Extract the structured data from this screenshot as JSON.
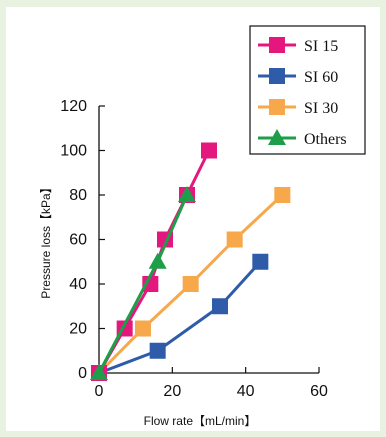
{
  "chart_data": {
    "type": "line",
    "title": "",
    "xlabel": "Flow rate【mL/min】",
    "ylabel": "Pressure loss【kPa】",
    "xlim": [
      0,
      60
    ],
    "ylim": [
      0,
      120
    ],
    "xticks": [
      "0",
      "20",
      "40",
      "60"
    ],
    "yticks": [
      "0",
      "20",
      "40",
      "60",
      "80",
      "100",
      "120"
    ],
    "grid": false,
    "legend_position": "top-right",
    "series": [
      {
        "name": "SI 15",
        "color": "#e4177e",
        "marker": "square",
        "points": [
          [
            0,
            0
          ],
          [
            7,
            20
          ],
          [
            14,
            40
          ],
          [
            18,
            60
          ],
          [
            24,
            80
          ],
          [
            30,
            100
          ]
        ]
      },
      {
        "name": "SI 60",
        "color": "#2f5ca8",
        "marker": "square",
        "points": [
          [
            0,
            0
          ],
          [
            16,
            10
          ],
          [
            33,
            30
          ],
          [
            44,
            50
          ]
        ]
      },
      {
        "name": "SI 30",
        "color": "#f6a84a",
        "marker": "square",
        "points": [
          [
            0,
            0
          ],
          [
            12,
            20
          ],
          [
            25,
            40
          ],
          [
            37,
            60
          ],
          [
            50,
            80
          ]
        ]
      },
      {
        "name": "Others",
        "color": "#1e9e48",
        "marker": "triangle",
        "points": [
          [
            0,
            0
          ],
          [
            16,
            50
          ],
          [
            24,
            80
          ]
        ]
      }
    ]
  }
}
